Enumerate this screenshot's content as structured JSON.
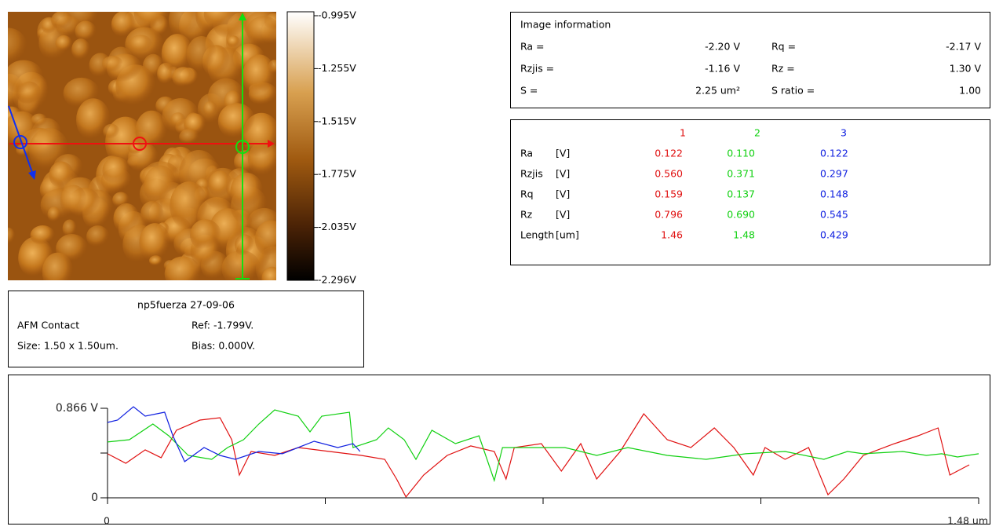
{
  "afm_image": {
    "colorbar_labels": [
      "-0.995V",
      "-1.255V",
      "-1.515V",
      "-1.775V",
      "-2.035V",
      "-2.296V"
    ]
  },
  "caption": {
    "title": "np5fuerza 27-09-06",
    "mode": "AFM Contact",
    "ref": "Ref: -1.799V.",
    "size": "Size: 1.50 x 1.50um.",
    "bias": "Bias: 0.000V."
  },
  "image_info": {
    "title": "Image information",
    "rows": [
      [
        "Ra =",
        "-2.20 V",
        "Rq =",
        "-2.17 V"
      ],
      [
        "Rzjis =",
        "-1.16 V",
        "Rz =",
        "1.30 V"
      ],
      [
        "S =",
        "2.25 um²",
        "S ratio =",
        "1.00"
      ]
    ]
  },
  "profile_stats": {
    "rows": [
      [
        "Ra",
        "[V]",
        "0.122",
        "0.110",
        "0.122"
      ],
      [
        "Rzjis",
        "[V]",
        "0.560",
        "0.371",
        "0.297"
      ],
      [
        "Rq",
        "[V]",
        "0.159",
        "0.137",
        "0.148"
      ],
      [
        "Rz",
        "[V]",
        "0.796",
        "0.690",
        "0.545"
      ],
      [
        "Length",
        "[um]",
        "1.46",
        "1.48",
        "0.429"
      ]
    ]
  },
  "chart_data": {
    "type": "line",
    "xlim": [
      0,
      1.48
    ],
    "ylim": [
      0,
      0.866
    ],
    "xticks": [
      0,
      {
        "value": 0.37,
        "label": null
      },
      {
        "value": 0.74,
        "label": null
      },
      {
        "value": 1.11,
        "label": null
      },
      {
        "value": 1.48,
        "label": "1.48 um"
      }
    ],
    "yticks": [
      0,
      {
        "value": 0.433,
        "label": null
      },
      {
        "value": 0.866,
        "label": "0.866 V"
      }
    ],
    "series": [
      {
        "name": "1",
        "color": "#e01010",
        "x": [
          0,
          0.031,
          0.064,
          0.091,
          0.117,
          0.157,
          0.191,
          0.211,
          0.224,
          0.244,
          0.284,
          0.324,
          0.377,
          0.431,
          0.471,
          0.491,
          0.507,
          0.537,
          0.577,
          0.617,
          0.657,
          0.677,
          0.691,
          0.737,
          0.771,
          0.804,
          0.831,
          0.871,
          0.911,
          0.951,
          0.991,
          1.031,
          1.064,
          1.097,
          1.117,
          1.151,
          1.191,
          1.224,
          1.251,
          1.284,
          1.337,
          1.377,
          1.411,
          1.431,
          1.464
        ],
        "values": [
          0.426,
          0.334,
          0.464,
          0.388,
          0.653,
          0.752,
          0.775,
          0.562,
          0.22,
          0.448,
          0.41,
          0.486,
          0.448,
          0.41,
          0.372,
          0.182,
          0.008,
          0.22,
          0.41,
          0.502,
          0.448,
          0.182,
          0.486,
          0.524,
          0.258,
          0.524,
          0.182,
          0.448,
          0.813,
          0.562,
          0.486,
          0.676,
          0.486,
          0.22,
          0.486,
          0.372,
          0.486,
          0.03,
          0.182,
          0.41,
          0.524,
          0.6,
          0.676,
          0.22,
          0.319
        ]
      },
      {
        "name": "2",
        "color": "#10d010",
        "x": [
          0,
          0.037,
          0.077,
          0.104,
          0.137,
          0.177,
          0.204,
          0.231,
          0.257,
          0.284,
          0.324,
          0.344,
          0.364,
          0.411,
          0.417,
          0.457,
          0.477,
          0.504,
          0.524,
          0.551,
          0.591,
          0.631,
          0.657,
          0.671,
          0.724,
          0.777,
          0.831,
          0.884,
          0.951,
          1.017,
          1.084,
          1.151,
          1.217,
          1.257,
          1.284,
          1.351,
          1.391,
          1.417,
          1.444,
          1.48
        ],
        "values": [
          0.54,
          0.562,
          0.714,
          0.6,
          0.41,
          0.372,
          0.486,
          0.562,
          0.714,
          0.851,
          0.79,
          0.638,
          0.79,
          0.828,
          0.486,
          0.562,
          0.676,
          0.562,
          0.372,
          0.653,
          0.524,
          0.6,
          0.167,
          0.486,
          0.486,
          0.486,
          0.41,
          0.486,
          0.41,
          0.372,
          0.426,
          0.448,
          0.372,
          0.448,
          0.426,
          0.448,
          0.41,
          0.426,
          0.395,
          0.426
        ]
      },
      {
        "name": "3",
        "color": "#1020e0",
        "x": [
          0,
          0.017,
          0.044,
          0.064,
          0.097,
          0.111,
          0.131,
          0.164,
          0.191,
          0.217,
          0.257,
          0.297,
          0.351,
          0.391,
          0.417,
          0.429
        ],
        "values": [
          0.729,
          0.752,
          0.881,
          0.79,
          0.828,
          0.6,
          0.35,
          0.486,
          0.41,
          0.372,
          0.448,
          0.426,
          0.547,
          0.486,
          0.524,
          0.448
        ]
      }
    ]
  }
}
